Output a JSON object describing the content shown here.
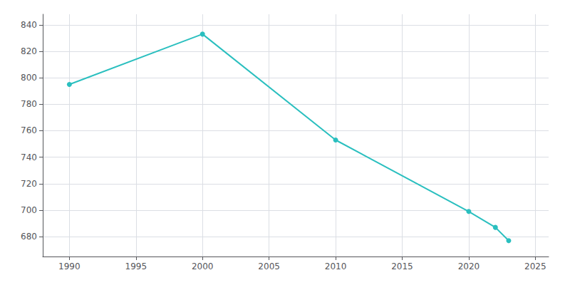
{
  "chart_data": {
    "type": "line",
    "x": [
      1990,
      2000,
      2010,
      2020,
      2022,
      2023
    ],
    "values": [
      795,
      833,
      753,
      699,
      687,
      677
    ],
    "color": "#2ABFBF",
    "marker": "circle",
    "xlim": [
      1988,
      2026
    ],
    "ylim": [
      665,
      848
    ],
    "xticks": [
      1990,
      1995,
      2000,
      2005,
      2010,
      2015,
      2020,
      2025
    ],
    "yticks": [
      680,
      700,
      720,
      740,
      760,
      780,
      800,
      820,
      840
    ],
    "grid": true
  }
}
